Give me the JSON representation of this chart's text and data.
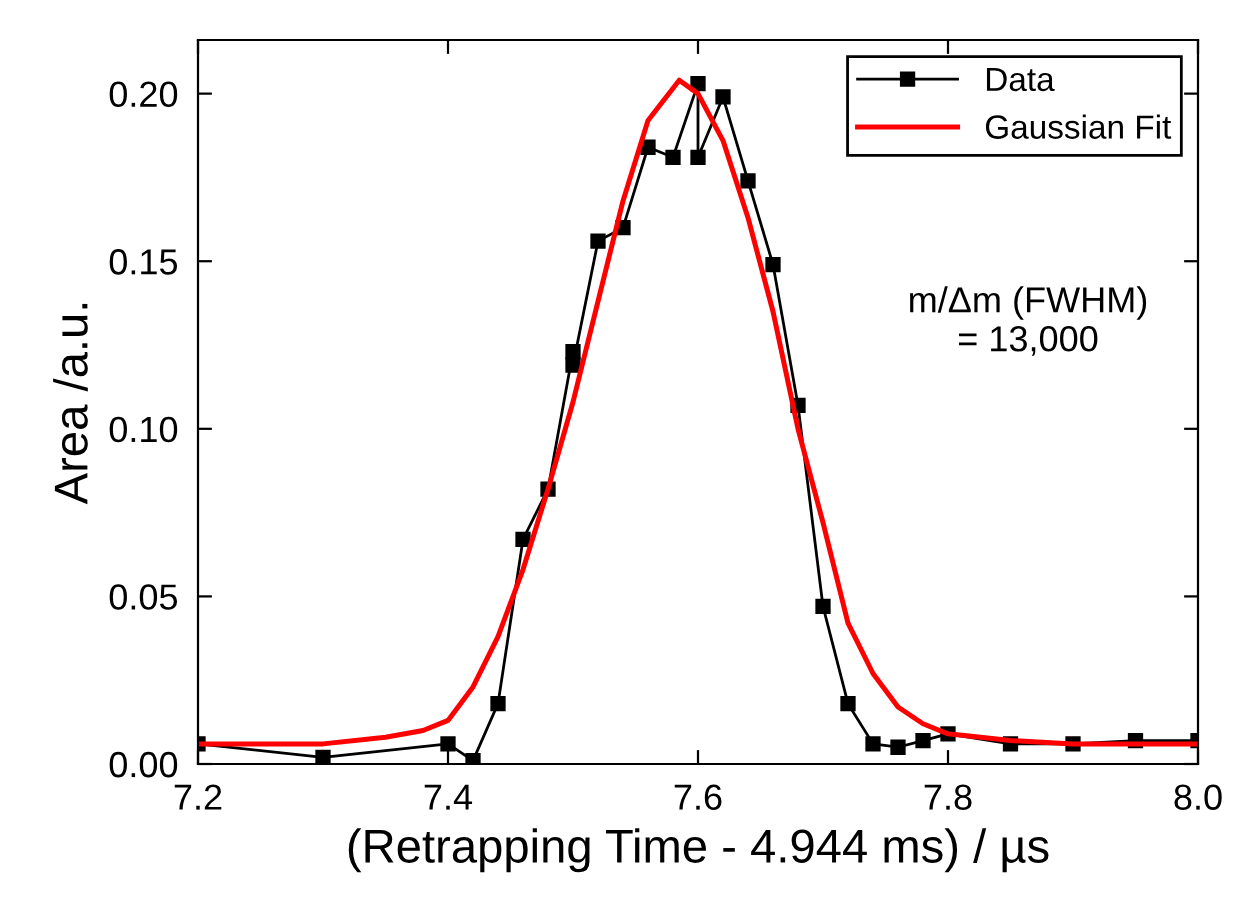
{
  "chart_data": {
    "type": "line",
    "xlabel": "(Retrapping Time - 4.944 ms) / µs",
    "ylabel": "Area /a.u.",
    "xlim": [
      7.2,
      8.0
    ],
    "xticks": [
      {
        "value": 7.2,
        "label": "7.2"
      },
      {
        "value": 7.4,
        "label": "7.4"
      },
      {
        "value": 7.6,
        "label": "7.6"
      },
      {
        "value": 7.8,
        "label": "7.8"
      },
      {
        "value": 8.0,
        "label": "8.0"
      }
    ],
    "ylim": [
      0,
      0.216
    ],
    "yticks": [
      {
        "value": 0,
        "label": "0.00"
      },
      {
        "value": 0.05,
        "label": "0.05"
      },
      {
        "value": 0.1,
        "label": "0.10"
      },
      {
        "value": 0.15,
        "label": "0.15"
      },
      {
        "value": 0.2,
        "label": "0.20"
      }
    ],
    "grid": false,
    "legend": "top right",
    "annotations": [
      "m/Δm (FWHM)\n= 13,000"
    ],
    "series": [
      {
        "name": "Data",
        "color": "#000000",
        "marker": "square",
        "x": [
          7.2,
          7.3,
          7.4,
          7.42,
          7.44,
          7.46,
          7.48,
          7.5,
          7.5,
          7.52,
          7.54,
          7.56,
          7.58,
          7.6,
          7.6,
          7.62,
          7.64,
          7.66,
          7.68,
          7.7,
          7.72,
          7.74,
          7.76,
          7.78,
          7.8,
          7.85,
          7.9,
          7.95,
          8.0
        ],
        "values": [
          0.006,
          0.002,
          0.006,
          0.001,
          0.018,
          0.067,
          0.082,
          0.123,
          0.119,
          0.156,
          0.16,
          0.184,
          0.181,
          0.203,
          0.181,
          0.199,
          0.174,
          0.149,
          0.107,
          0.047,
          0.018,
          0.006,
          0.005,
          0.007,
          0.009,
          0.006,
          0.006,
          0.007,
          0.007
        ]
      },
      {
        "name": "Gaussian Fit",
        "color": "#ff0000",
        "marker": "none",
        "x": [
          7.2,
          7.3,
          7.35,
          7.38,
          7.4,
          7.42,
          7.44,
          7.46,
          7.48,
          7.5,
          7.52,
          7.54,
          7.56,
          7.585,
          7.6,
          7.62,
          7.64,
          7.66,
          7.68,
          7.7,
          7.72,
          7.74,
          7.76,
          7.78,
          7.8,
          7.85,
          7.9,
          8.0
        ],
        "values": [
          0.006,
          0.006,
          0.008,
          0.01,
          0.013,
          0.023,
          0.038,
          0.058,
          0.082,
          0.108,
          0.138,
          0.168,
          0.192,
          0.204,
          0.2,
          0.186,
          0.163,
          0.135,
          0.1,
          0.072,
          0.042,
          0.027,
          0.017,
          0.012,
          0.009,
          0.007,
          0.006,
          0.006
        ]
      }
    ]
  }
}
